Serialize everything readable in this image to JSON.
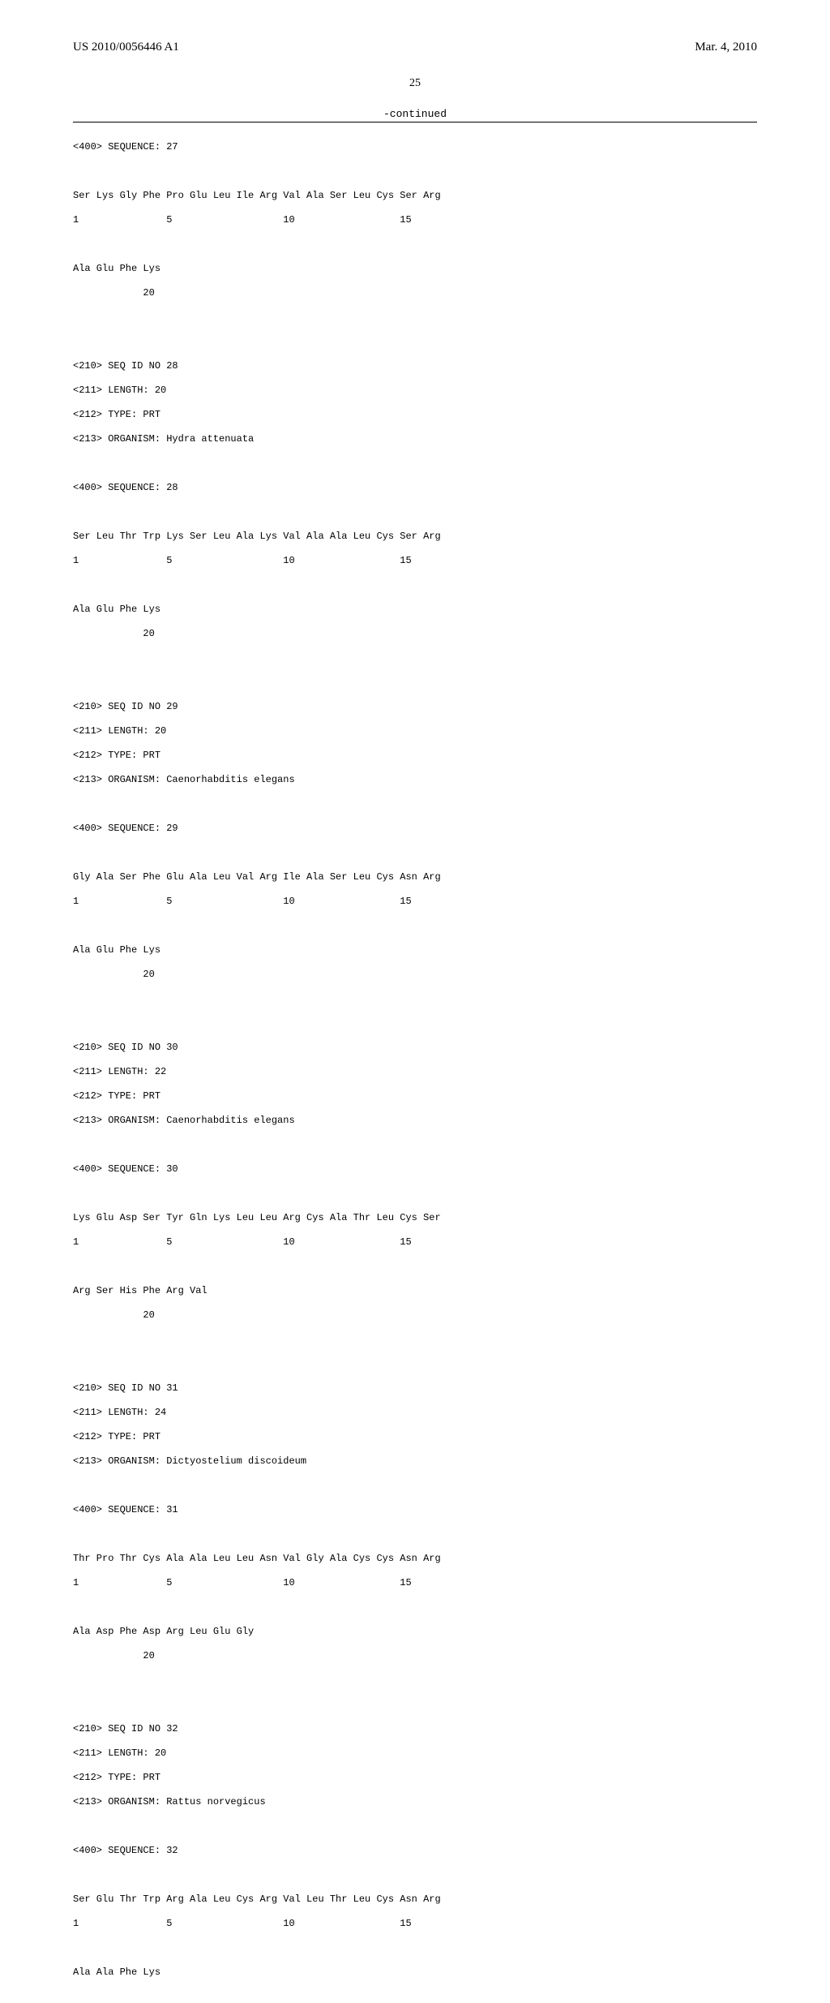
{
  "header": {
    "publication_id": "US 2010/0056446 A1",
    "publication_date": "Mar. 4, 2010"
  },
  "page_number": "25",
  "continued_label": "-continued",
  "sequences": [
    {
      "header_lines": [
        "<400> SEQUENCE: 27"
      ],
      "seq_lines": [
        "Ser Lys Gly Phe Pro Glu Leu Ile Arg Val Ala Ser Leu Cys Ser Arg",
        "1               5                   10                  15",
        "",
        "Ala Glu Phe Lys",
        "            20"
      ]
    },
    {
      "header_lines": [
        "<210> SEQ ID NO 28",
        "<211> LENGTH: 20",
        "<212> TYPE: PRT",
        "<213> ORGANISM: Hydra attenuata"
      ],
      "seq400": "<400> SEQUENCE: 28",
      "seq_lines": [
        "Ser Leu Thr Trp Lys Ser Leu Ala Lys Val Ala Ala Leu Cys Ser Arg",
        "1               5                   10                  15",
        "",
        "Ala Glu Phe Lys",
        "            20"
      ]
    },
    {
      "header_lines": [
        "<210> SEQ ID NO 29",
        "<211> LENGTH: 20",
        "<212> TYPE: PRT",
        "<213> ORGANISM: Caenorhabditis elegans"
      ],
      "seq400": "<400> SEQUENCE: 29",
      "seq_lines": [
        "Gly Ala Ser Phe Glu Ala Leu Val Arg Ile Ala Ser Leu Cys Asn Arg",
        "1               5                   10                  15",
        "",
        "Ala Glu Phe Lys",
        "            20"
      ]
    },
    {
      "header_lines": [
        "<210> SEQ ID NO 30",
        "<211> LENGTH: 22",
        "<212> TYPE: PRT",
        "<213> ORGANISM: Caenorhabditis elegans"
      ],
      "seq400": "<400> SEQUENCE: 30",
      "seq_lines": [
        "Lys Glu Asp Ser Tyr Gln Lys Leu Leu Arg Cys Ala Thr Leu Cys Ser",
        "1               5                   10                  15",
        "",
        "Arg Ser His Phe Arg Val",
        "            20"
      ]
    },
    {
      "header_lines": [
        "<210> SEQ ID NO 31",
        "<211> LENGTH: 24",
        "<212> TYPE: PRT",
        "<213> ORGANISM: Dictyostelium discoideum"
      ],
      "seq400": "<400> SEQUENCE: 31",
      "seq_lines": [
        "Thr Pro Thr Cys Ala Ala Leu Leu Asn Val Gly Ala Cys Cys Asn Arg",
        "1               5                   10                  15",
        "",
        "Ala Asp Phe Asp Arg Leu Glu Gly",
        "            20"
      ]
    },
    {
      "header_lines": [
        "<210> SEQ ID NO 32",
        "<211> LENGTH: 20",
        "<212> TYPE: PRT",
        "<213> ORGANISM: Rattus norvegicus"
      ],
      "seq400": "<400> SEQUENCE: 32",
      "seq_lines": [
        "Ser Glu Thr Trp Arg Ala Leu Cys Arg Val Leu Thr Leu Cys Asn Arg",
        "1               5                   10                  15",
        "",
        "Ala Ala Phe Lys"
      ]
    }
  ]
}
